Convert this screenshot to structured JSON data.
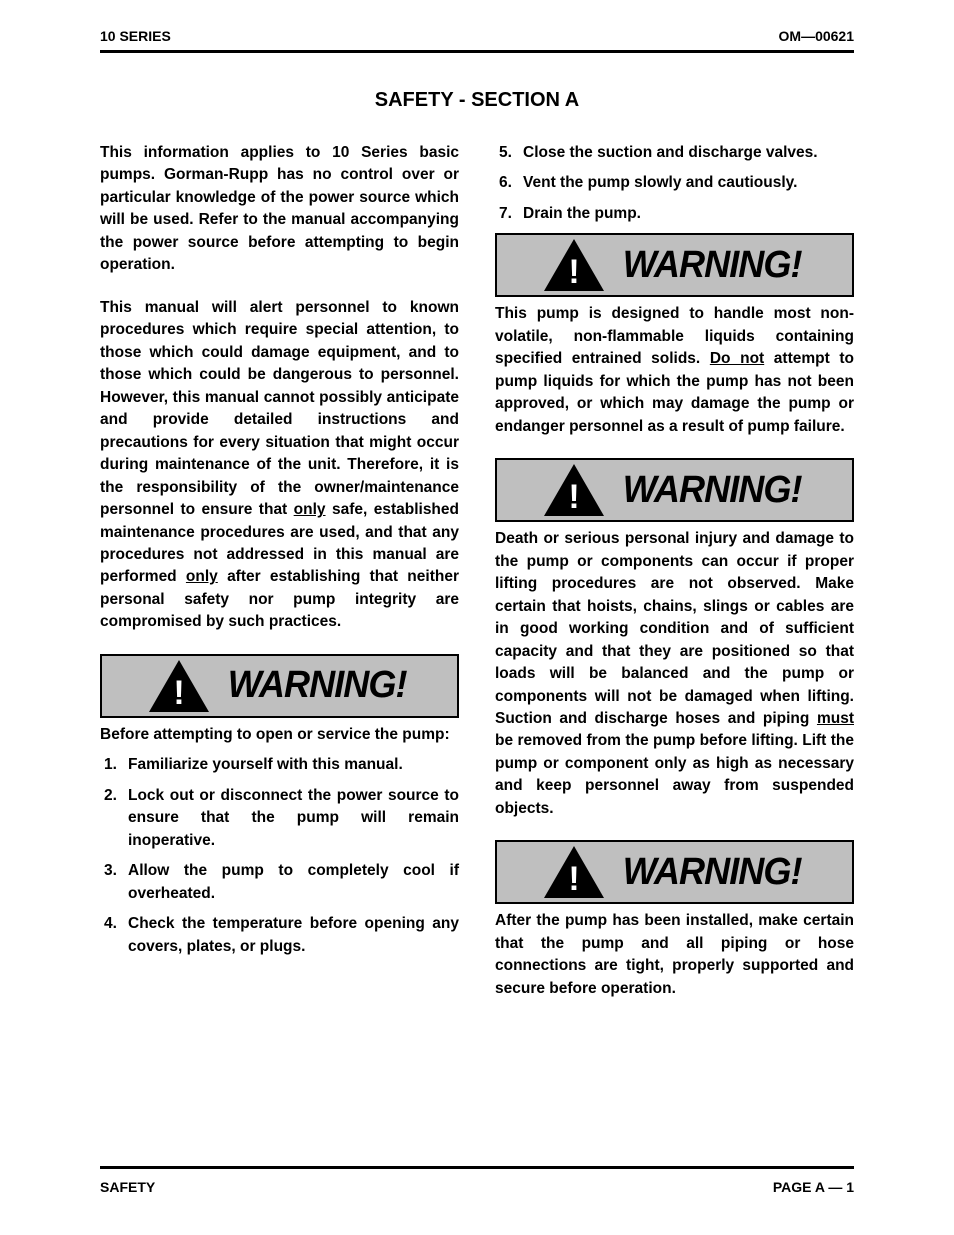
{
  "header": {
    "left": "10 SERIES",
    "right": "OM—00621"
  },
  "title": "SAFETY - SECTION A",
  "col1": {
    "para1": "This information applies to 10 Series basic pumps. Gorman-Rupp has no control over or particular knowledge of the power source which will be used. Refer to the manual accompanying the power source before attempting to begin operation.",
    "para2_a": "This manual will alert personnel to known procedures which require special attention, to those which could damage equipment, and to those which could be dangerous to personnel. However, this manual cannot possibly anticipate and provide detailed instructions and precautions for every situation that might occur during maintenance of the unit. Therefore, it is the responsibility of the owner/maintenance personnel to ensure that ",
    "para2_u1": "only",
    "para2_b": " safe, established maintenance procedures are used, and that any procedures not addressed in this manual are performed ",
    "para2_u2": "only",
    "para2_c": " after establishing that neither personal safety nor pump integrity are compromised by such practices.",
    "warning_label": "WARNING!",
    "pre_steps": "Before attempting to open or service the pump:",
    "steps": [
      "Familiarize yourself with this manual.",
      "Lock out or disconnect the power source to ensure that the pump will remain inoperative.",
      "Allow the pump to completely cool if overheated.",
      "Check the temperature before opening any covers, plates, or plugs."
    ]
  },
  "col2": {
    "steps2": [
      "Close the suction and discharge valves.",
      "Vent the pump slowly and cautiously.",
      "Drain the pump."
    ],
    "warning_label": "WARNING!",
    "w1_a": "This pump is designed to handle most non-volatile, non-flammable liquids containing specified entrained solids. ",
    "w1_u": "Do not",
    "w1_b": " attempt to pump liquids for which the pump has not been approved, or which may damage the pump or endanger personnel as a result of pump failure.",
    "w2_a": "Death or serious personal injury and damage to the pump or components can occur if proper lifting procedures are not observed. Make certain that hoists, chains, slings or cables are in good working condition and of sufficient capacity and that they are positioned so that loads will be balanced and the pump or components will not be damaged when lifting. Suction and discharge hoses and piping ",
    "w2_u": "must",
    "w2_b": " be removed from the pump before lifting. Lift the pump or component only as high as necessary and keep personnel away from suspended objects.",
    "w3": "After the pump has been installed, make certain that the pump and all piping or hose connections are tight, properly supported and secure before operation."
  },
  "footer": {
    "left": "SAFETY",
    "right": "PAGE A — 1"
  }
}
